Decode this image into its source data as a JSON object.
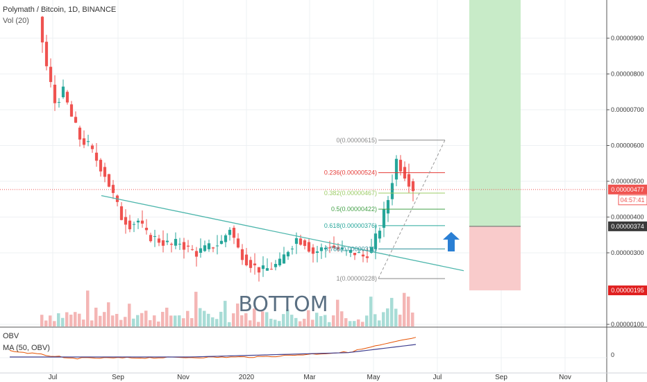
{
  "header": {
    "symbol_line": "Polymath / Bitcoin, 1D, BINANCE",
    "volume_line": "Vol (20)"
  },
  "obv_pane": {
    "title": "OBV",
    "ma_label": "MA (50, OBV)",
    "zero_label": "0"
  },
  "colors": {
    "up": "#26a69a",
    "down": "#ef5350",
    "trendline": "#4db6ac",
    "arrow": "#2a7fd4",
    "target_zone": "#c8ebc8",
    "stop_zone": "#f9cbcb",
    "price_line": "#ef5350",
    "obv": "#e65100",
    "obv_ma": "#3f3f8f"
  },
  "chart_data": {
    "type": "candlestick",
    "pair": "Polymath / Bitcoin",
    "timeframe": "1D",
    "exchange": "BINANCE",
    "x_tick_labels": [
      "Jul",
      "Sep",
      "Nov",
      "2020",
      "Mar",
      "May",
      "Jul",
      "Sep",
      "Nov"
    ],
    "y_tick_labels": [
      "0.00000100",
      "0.00000300",
      "0.00000400",
      "0.00000500",
      "0.00000600",
      "0.00000700",
      "0.00000800",
      "0.00000900"
    ],
    "y_log": true,
    "y_range": [
      1e-06,
      9.6e-06
    ],
    "current_price": "0.00000477",
    "countdown": "04:57:41",
    "entry_price": "0.00000374",
    "stop_price": "0.00000195",
    "price_series": [
      [
        0,
        9.6e-06
      ],
      [
        2,
        8.2e-06
      ],
      [
        4,
        7.2e-06
      ],
      [
        6,
        7.5e-06
      ],
      [
        8,
        6.8e-06
      ],
      [
        10,
        6.2e-06
      ],
      [
        12,
        6e-06
      ],
      [
        14,
        5.6e-06
      ],
      [
        16,
        5.2e-06
      ],
      [
        18,
        4.6e-06
      ],
      [
        20,
        4e-06
      ],
      [
        22,
        3.8e-06
      ],
      [
        24,
        3.9e-06
      ],
      [
        26,
        3.5e-06
      ],
      [
        28,
        3.4e-06
      ],
      [
        30,
        3.3e-06
      ],
      [
        32,
        3.2e-06
      ],
      [
        34,
        3.3e-06
      ],
      [
        36,
        3.1e-06
      ],
      [
        38,
        3e-06
      ],
      [
        40,
        3.1e-06
      ],
      [
        42,
        3.2e-06
      ],
      [
        44,
        3.3e-06
      ],
      [
        46,
        3.7e-06
      ],
      [
        48,
        3.1e-06
      ],
      [
        50,
        2.8e-06
      ],
      [
        52,
        2.6e-06
      ],
      [
        54,
        2.5e-06
      ],
      [
        56,
        2.6e-06
      ],
      [
        58,
        2.7e-06
      ],
      [
        60,
        3.1e-06
      ],
      [
        62,
        3.4e-06
      ],
      [
        64,
        3.3e-06
      ],
      [
        66,
        3e-06
      ],
      [
        68,
        3.1e-06
      ],
      [
        70,
        3.2e-06
      ],
      [
        72,
        3.1e-06
      ],
      [
        74,
        3e-06
      ],
      [
        76,
        3e-06
      ],
      [
        78,
        2.9e-06
      ],
      [
        80,
        3.1e-06
      ],
      [
        82,
        3.7e-06
      ],
      [
        84,
        4.5e-06
      ],
      [
        86,
        5.6e-06
      ],
      [
        88,
        5.2e-06
      ],
      [
        90,
        4.8e-06
      ]
    ],
    "trendline": {
      "from": [
        16,
        4.6e-06
      ],
      "to": [
        100,
        3.2e-06
      ]
    },
    "fibonacci": [
      {
        "label": "0(0.00000615)",
        "value": 6.15e-06,
        "color": "#888888"
      },
      {
        "label": "0.236(0.00000524)",
        "value": 5.24e-06,
        "color": "#e53935"
      },
      {
        "label": "0.382(0.00000467)",
        "value": 4.67e-06,
        "color": "#9ccc65"
      },
      {
        "label": "0.5(0.00000422)",
        "value": 4.22e-06,
        "color": "#43a047"
      },
      {
        "label": "0.618(0.00000376)",
        "value": 3.76e-06,
        "color": "#26a69a"
      },
      {
        "label": "0.786(0.00000311)",
        "value": 3.11e-06,
        "color": "#2a8f9a"
      },
      {
        "label": "1(0.00000228)",
        "value": 2.28e-06,
        "color": "#888888"
      }
    ],
    "annotation": "BOTTOM"
  }
}
